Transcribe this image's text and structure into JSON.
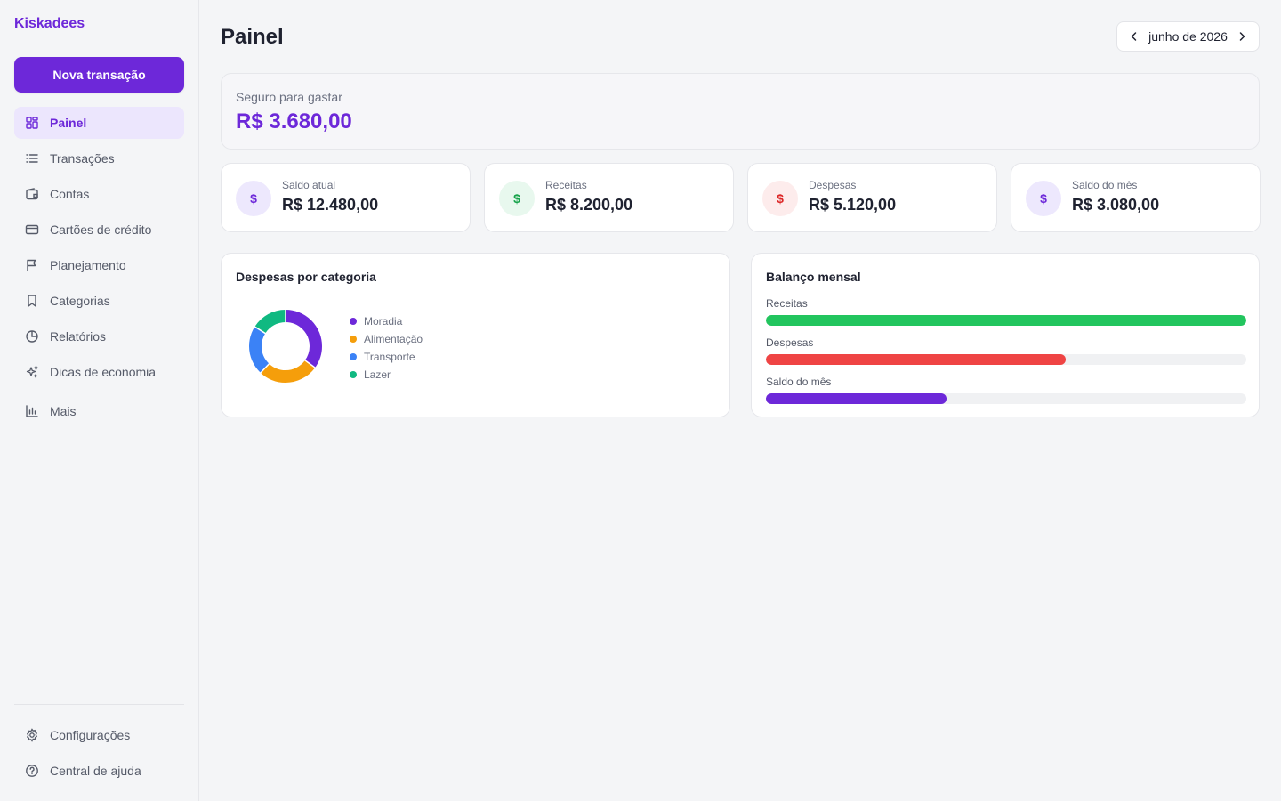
{
  "app": {
    "name": "Kiskadees"
  },
  "sidebar": {
    "new_button": "Nova transação",
    "items": [
      {
        "label": "Painel",
        "icon": "grid-icon",
        "active": true
      },
      {
        "label": "Transações",
        "icon": "list-icon"
      },
      {
        "label": "Contas",
        "icon": "wallet-icon"
      },
      {
        "label": "Cartões de crédito",
        "icon": "credit-card-icon"
      },
      {
        "label": "Planejamento",
        "icon": "flag-icon"
      },
      {
        "label": "Categorias",
        "icon": "bookmark-icon"
      },
      {
        "label": "Relatórios",
        "icon": "pie-chart-icon"
      },
      {
        "label": "Dicas de economia",
        "icon": "sparkles-icon"
      },
      {
        "label": "Mais",
        "icon": "bar-chart-icon"
      }
    ],
    "bottom_items": [
      {
        "label": "Configurações",
        "icon": "gear-icon"
      },
      {
        "label": "Central de ajuda",
        "icon": "help-circle-icon"
      }
    ]
  },
  "header": {
    "title": "Painel",
    "month": "junho de 2026"
  },
  "safe_to_spend": {
    "label": "Seguro para gastar",
    "value": "R$ 3.680,00"
  },
  "stats": [
    {
      "label": "Saldo atual",
      "value": "R$ 12.480,00",
      "symbol": "$",
      "color": "#6d28d9",
      "bg": "#ede8fd"
    },
    {
      "label": "Receitas",
      "value": "R$ 8.200,00",
      "symbol": "$",
      "color": "#16a34a",
      "bg": "#e8f8ee"
    },
    {
      "label": "Despesas",
      "value": "R$ 5.120,00",
      "symbol": "$",
      "color": "#dc2626",
      "bg": "#fdecec"
    },
    {
      "label": "Saldo do mês",
      "value": "R$ 3.080,00",
      "symbol": "$",
      "color": "#6d28d9",
      "bg": "#ede8fd"
    }
  ],
  "expenses_by_category": {
    "title": "Despesas por categoria",
    "chart_data": {
      "type": "pie",
      "categories": [
        "Moradia",
        "Alimentação",
        "Transporte",
        "Lazer"
      ],
      "values": [
        35,
        27,
        22,
        16
      ],
      "colors": [
        "#6d28d9",
        "#f59e0b",
        "#3b82f6",
        "#10b981"
      ]
    }
  },
  "monthly_balance": {
    "title": "Balanço mensal",
    "bars": [
      {
        "label": "Receitas",
        "fraction": 1.0,
        "color": "#22c55e"
      },
      {
        "label": "Despesas",
        "fraction": 0.624,
        "color": "#ef4444"
      },
      {
        "label": "Saldo do mês",
        "fraction": 0.376,
        "color": "#6d28d9"
      }
    ]
  }
}
